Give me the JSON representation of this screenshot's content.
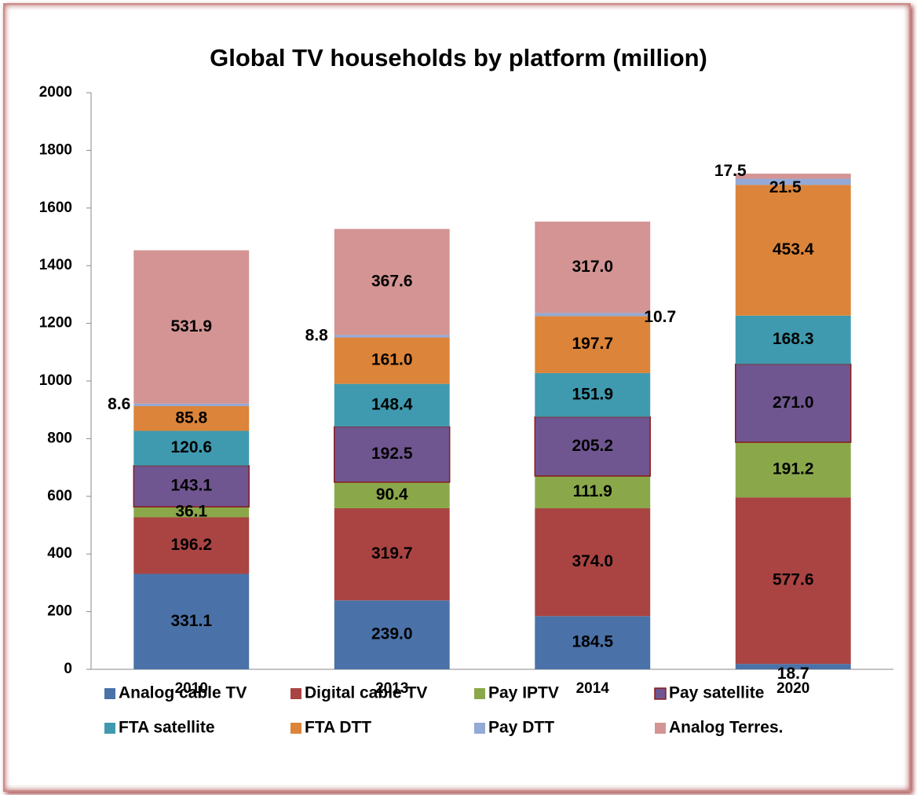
{
  "chart_data": {
    "type": "stacked_bar",
    "title": "Global TV households by platform (million)",
    "categories": [
      "2010",
      "2013",
      "2014",
      "2020"
    ],
    "ylim": [
      0,
      2000
    ],
    "yticks": [
      0,
      200,
      400,
      600,
      800,
      1000,
      1200,
      1400,
      1600,
      1800,
      2000
    ],
    "series": [
      {
        "name": "Analog cable TV",
        "color": "#4a72a8",
        "values": [
          331.1,
          239.0,
          184.5,
          18.7
        ],
        "value_labels": [
          "331.1",
          "239.0",
          "184.5",
          "18.7"
        ]
      },
      {
        "name": "Digital cable TV",
        "color": "#a94442",
        "values": [
          196.2,
          319.7,
          374.0,
          577.6
        ],
        "value_labels": [
          "196.2",
          "319.7",
          "374.0",
          "577.6"
        ]
      },
      {
        "name": "Pay IPTV",
        "color": "#8aa84a",
        "values": [
          36.1,
          90.4,
          111.9,
          191.2
        ],
        "value_labels": [
          "36.1",
          "90.4",
          "111.9",
          "191.2"
        ]
      },
      {
        "name": "Pay satellite",
        "color": "#6f5690",
        "values": [
          143.1,
          192.5,
          205.2,
          271.0
        ],
        "value_labels": [
          "143.1",
          "192.5",
          "205.2",
          "271.0"
        ]
      },
      {
        "name": "FTA satellite",
        "color": "#3f9aaf",
        "values": [
          120.6,
          148.4,
          151.9,
          168.3
        ],
        "value_labels": [
          "120.6",
          "148.4",
          "151.9",
          "168.3"
        ]
      },
      {
        "name": "FTA DTT",
        "color": "#dc8439",
        "values": [
          85.8,
          161.0,
          197.7,
          453.4
        ],
        "value_labels": [
          "85.8",
          "161.0",
          "197.7",
          "453.4"
        ]
      },
      {
        "name": "Pay DTT",
        "color": "#94a9d6",
        "values": [
          8.6,
          8.8,
          10.7,
          21.5
        ],
        "value_labels": [
          "8.6",
          "8.8",
          "10.7",
          "21.5"
        ]
      },
      {
        "name": "Analog Terres.",
        "color": "#d39493",
        "values": [
          531.9,
          367.6,
          317.0,
          17.5
        ],
        "value_labels": [
          "531.9",
          "367.6",
          "317.0",
          "17.5"
        ]
      }
    ]
  }
}
